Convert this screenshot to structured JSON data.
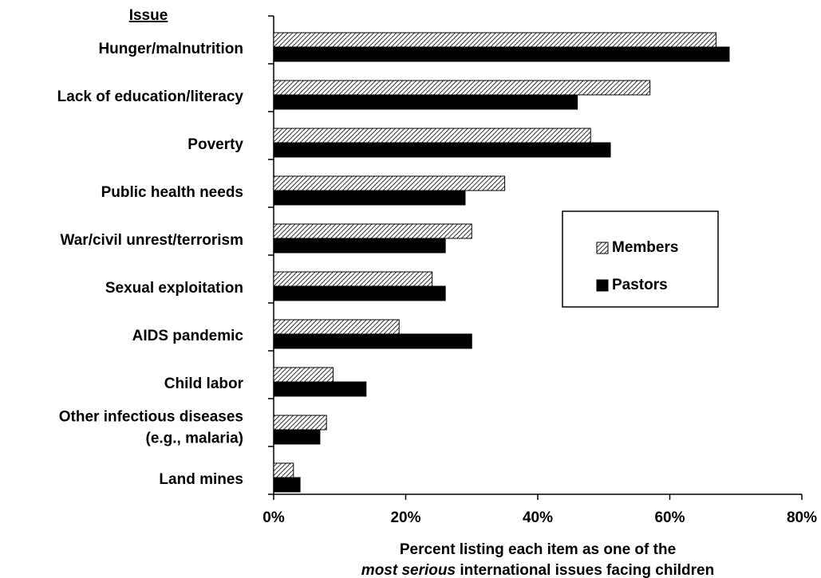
{
  "chart_data": {
    "type": "barh",
    "y_axis_title": "Issue",
    "categories": [
      "Hunger/malnutrition",
      "Lack of education/literacy",
      "Poverty",
      "Public health needs",
      "War/civil unrest/terrorism",
      "Sexual exploitation",
      "AIDS pandemic",
      "Child labor",
      "Other infectious diseases\n(e.g., malaria)",
      "Land mines"
    ],
    "series": [
      {
        "name": "Members",
        "color": "#000000",
        "pattern": "hatch",
        "values": [
          67,
          57,
          48,
          35,
          30,
          24,
          19,
          9,
          8,
          3
        ]
      },
      {
        "name": "Pastors",
        "color": "#000000",
        "pattern": "solid",
        "values": [
          69,
          46,
          51,
          29,
          26,
          26,
          30,
          14,
          7,
          4
        ]
      }
    ],
    "xlim": [
      0,
      80
    ],
    "xticks": [
      {
        "value": 0,
        "label": "0%"
      },
      {
        "value": 20,
        "label": "20%"
      },
      {
        "value": 40,
        "label": "40%"
      },
      {
        "value": 60,
        "label": "60%"
      },
      {
        "value": 80,
        "label": "80%"
      }
    ],
    "x_axis_title": {
      "line1": "Percent listing each item as one of the",
      "line2_italic": "most serious",
      "line2_rest": " international issues facing children"
    },
    "legend": "right",
    "grid": false
  }
}
